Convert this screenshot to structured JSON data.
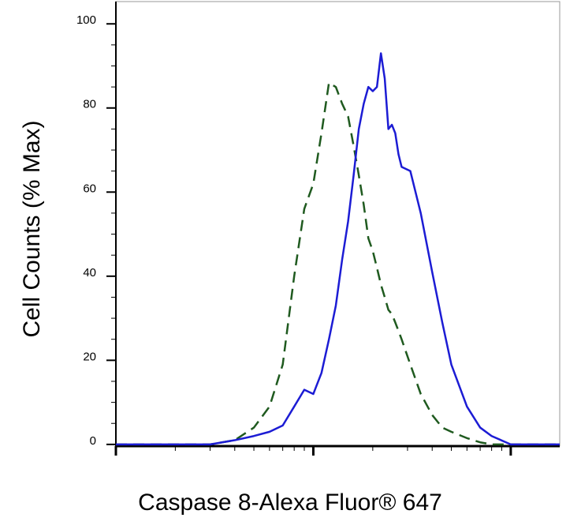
{
  "chart_data": {
    "type": "line",
    "x_label": "Caspase 8-Alexa Fluor® 647",
    "y_label": "Cell Counts (% Max)",
    "xscale": "log",
    "x": [
      1,
      1.5,
      2,
      3,
      4,
      5,
      6,
      7,
      8,
      9,
      10,
      11,
      12,
      13,
      14,
      15,
      16,
      17,
      18,
      19,
      20,
      21,
      22,
      23,
      24,
      25,
      26,
      27,
      28,
      31,
      35,
      40,
      45,
      50,
      60,
      70,
      80,
      100,
      120,
      150,
      177
    ],
    "series": [
      {
        "color": "#1c1cd4",
        "dash": false,
        "values": [
          0,
          0,
          0,
          0,
          1,
          2,
          3,
          4.5,
          9,
          13,
          12,
          17,
          25,
          33,
          44,
          53,
          64,
          75,
          81,
          85,
          84,
          85,
          93,
          87,
          75,
          76,
          74,
          69,
          66,
          65,
          55,
          41,
          29,
          19,
          9,
          4,
          2,
          0,
          0,
          0,
          0
        ]
      },
      {
        "color": "#1f5a1f",
        "dash": true,
        "values": [
          0,
          0,
          0,
          0,
          1,
          4,
          9,
          19,
          40,
          56,
          62,
          74,
          86,
          85,
          81,
          78,
          71,
          64,
          57,
          49,
          46,
          42,
          38,
          35,
          32,
          31,
          29,
          27,
          25,
          19,
          12,
          7,
          4,
          3,
          1.5,
          0.5,
          0,
          0,
          0,
          0,
          0
        ]
      }
    ],
    "xlim": [
      1,
      177
    ],
    "xticks": [
      1,
      10,
      100
    ],
    "minor_xticks": [
      2,
      3,
      4,
      5,
      6,
      7,
      8,
      9,
      20,
      30,
      40,
      50,
      60,
      70,
      80,
      90
    ],
    "ylim": [
      -0.4,
      105.3
    ],
    "yticks": [
      0,
      20,
      40,
      60,
      80,
      100
    ],
    "minor_yticks": [
      5,
      10,
      15,
      25,
      30,
      35,
      45,
      50,
      55,
      65,
      70,
      75,
      85,
      90,
      95
    ]
  }
}
